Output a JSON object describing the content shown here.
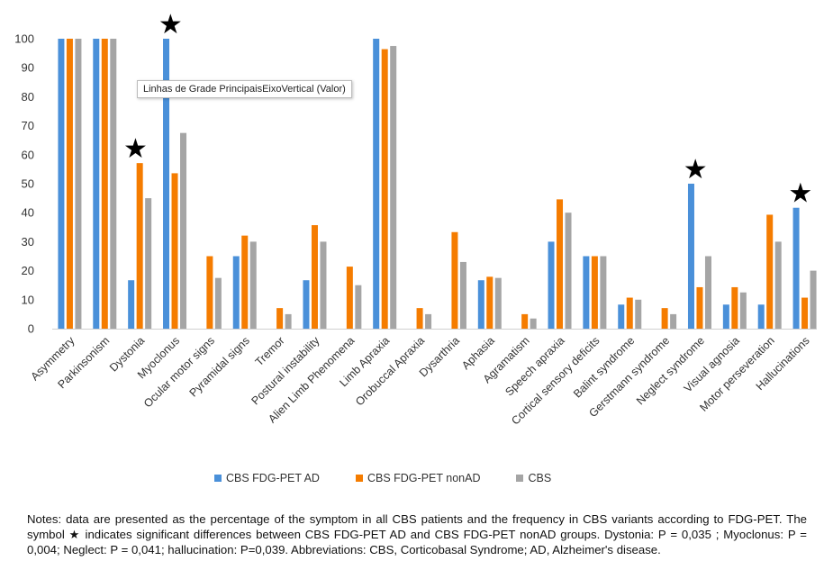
{
  "chart_data": {
    "type": "bar",
    "ylim": [
      0,
      100
    ],
    "yticks": [
      0,
      10,
      20,
      30,
      40,
      50,
      60,
      70,
      80,
      90,
      100
    ],
    "grid": false,
    "legend_position": "bottom",
    "categories": [
      "Asymmetry",
      "Parkinsonism",
      "Dystonia",
      "Myoclonus",
      "Ocular motor signs",
      "Pyramidal signs",
      "Tremor",
      "Postural instability",
      "Alien Limb Phenomena",
      "Limb Apraxia",
      "Orobuccal Apraxia",
      "Dysarthria",
      "Aphasia",
      "Agramatism",
      "Speech apraxia",
      "Cortical sensory deficits",
      "Balint syndrome",
      "Gerstmann syndrome",
      "Neglect syndrome",
      "Visual agnosia",
      "Motor perseveration",
      "Hallucinations"
    ],
    "series": [
      {
        "name": "CBS FDG-PET AD",
        "color": "#4a90d9",
        "values": [
          100,
          100,
          16.7,
          100,
          0,
          25,
          0,
          16.7,
          0,
          100,
          0,
          0,
          16.7,
          0,
          30,
          25,
          8.3,
          0,
          50,
          8.3,
          8.3,
          41.7
        ]
      },
      {
        "name": "CBS FDG-PET nonAD",
        "color": "#f57c00",
        "values": [
          100,
          100,
          57.1,
          53.6,
          25,
          32.1,
          7.1,
          35.7,
          21.4,
          96.4,
          7.1,
          33.3,
          17.9,
          5,
          44.6,
          25,
          10.7,
          7.1,
          14.3,
          14.3,
          39.3,
          10.7
        ]
      },
      {
        "name": "CBS",
        "color": "#a5a5a5",
        "values": [
          100,
          100,
          45,
          67.5,
          17.5,
          30,
          5,
          30,
          15,
          97.5,
          5,
          23,
          17.5,
          3.5,
          40,
          25,
          10,
          5,
          25,
          12.5,
          30,
          20
        ]
      }
    ],
    "significant": [
      2,
      3,
      18,
      21
    ]
  },
  "tooltip_text": "Linhas de Grade PrincipaisEixoVertical (Valor)",
  "notes": "Notes: data are presented as the percentage of the symptom in all CBS patients and the frequency in CBS variants according to FDG-PET. The symbol ★ indicates significant differences between CBS FDG-PET AD and CBS FDG-PET nonAD groups. Dystonia: P = 0,035 ; Myoclonus: P = 0,004; Neglect: P = 0,041; hallucination: P=0,039. Abbreviations: CBS, Corticobasal Syndrome; AD, Alzheimer's disease."
}
